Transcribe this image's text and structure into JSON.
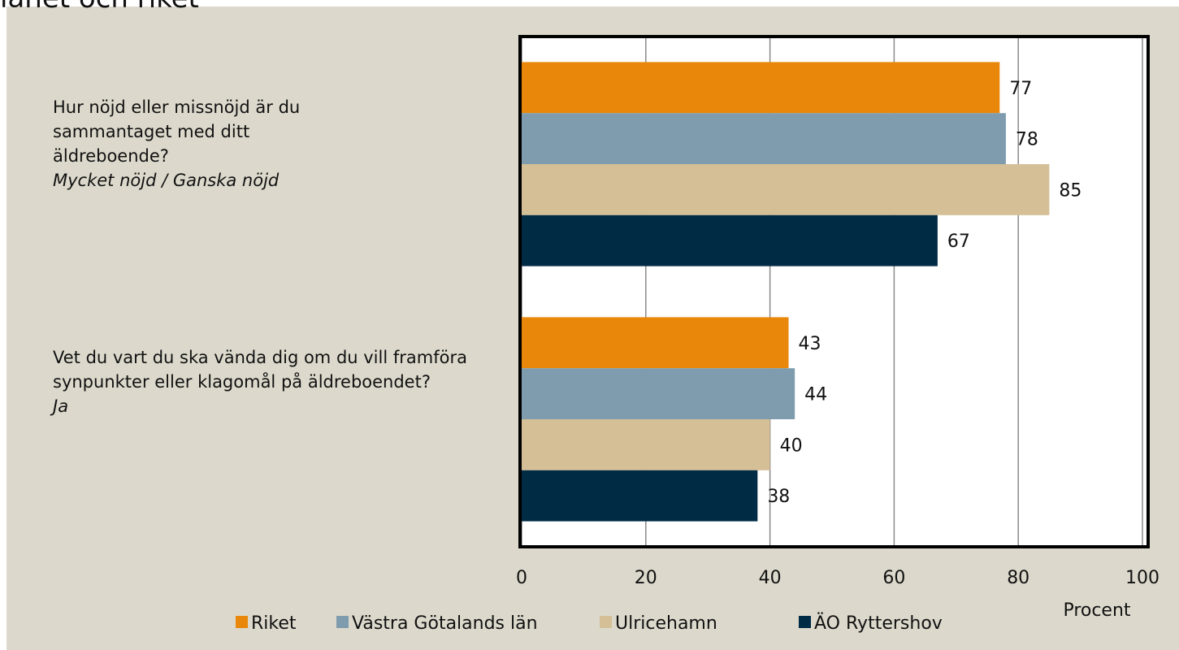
{
  "chart_data": {
    "type": "bar",
    "orientation": "horizontal",
    "title": "länet och riket",
    "categories": [
      "Hur nöjd eller missnöjd är du sammantaget med ditt äldreboende?",
      "Vet du vart du ska vända dig om du vill framföra synpunkter eller klagomål på äldreboendet?"
    ],
    "category_answers": [
      "Mycket nöjd / Ganska nöjd",
      "Ja"
    ],
    "series": [
      {
        "name": "Riket",
        "color": "#e8870a",
        "values": [
          77,
          43
        ]
      },
      {
        "name": "Västra Götalands län",
        "color": "#7f9cae",
        "values": [
          78,
          44
        ]
      },
      {
        "name": "Ulricehamn",
        "color": "#d4bf96",
        "values": [
          85,
          40
        ]
      },
      {
        "name": "ÄO Ryttershov",
        "color": "#002b45",
        "values": [
          67,
          38
        ]
      }
    ],
    "xlabel": "Procent",
    "xlim": [
      0,
      100
    ],
    "xticks": [
      0,
      20,
      40,
      60,
      80,
      100
    ],
    "grid": true,
    "legend": "bottom"
  }
}
